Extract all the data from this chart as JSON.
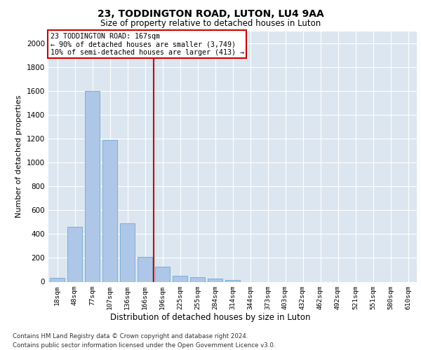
{
  "title": "23, TODDINGTON ROAD, LUTON, LU4 9AA",
  "subtitle": "Size of property relative to detached houses in Luton",
  "xlabel": "Distribution of detached houses by size in Luton",
  "ylabel": "Number of detached properties",
  "footer_line1": "Contains HM Land Registry data © Crown copyright and database right 2024.",
  "footer_line2": "Contains public sector information licensed under the Open Government Licence v3.0.",
  "bar_labels": [
    "18sqm",
    "48sqm",
    "77sqm",
    "107sqm",
    "136sqm",
    "166sqm",
    "196sqm",
    "225sqm",
    "255sqm",
    "284sqm",
    "314sqm",
    "344sqm",
    "373sqm",
    "403sqm",
    "432sqm",
    "462sqm",
    "492sqm",
    "521sqm",
    "551sqm",
    "580sqm",
    "610sqm"
  ],
  "bar_values": [
    30,
    460,
    1600,
    1190,
    490,
    210,
    125,
    47,
    40,
    25,
    13,
    0,
    0,
    0,
    0,
    0,
    0,
    0,
    0,
    0,
    0
  ],
  "bar_color": "#aec6e8",
  "bar_edge_color": "#7aafd4",
  "annotation_title": "23 TODDINGTON ROAD: 167sqm",
  "annotation_line2": "← 90% of detached houses are smaller (3,749)",
  "annotation_line3": "10% of semi-detached houses are larger (413) →",
  "vline_color": "#cc0000",
  "annotation_box_color": "#cc0000",
  "ylim": [
    0,
    2100
  ],
  "yticks": [
    0,
    200,
    400,
    600,
    800,
    1000,
    1200,
    1400,
    1600,
    1800,
    2000
  ],
  "plot_bg_color": "#dce6f0",
  "vline_x_index": 5
}
